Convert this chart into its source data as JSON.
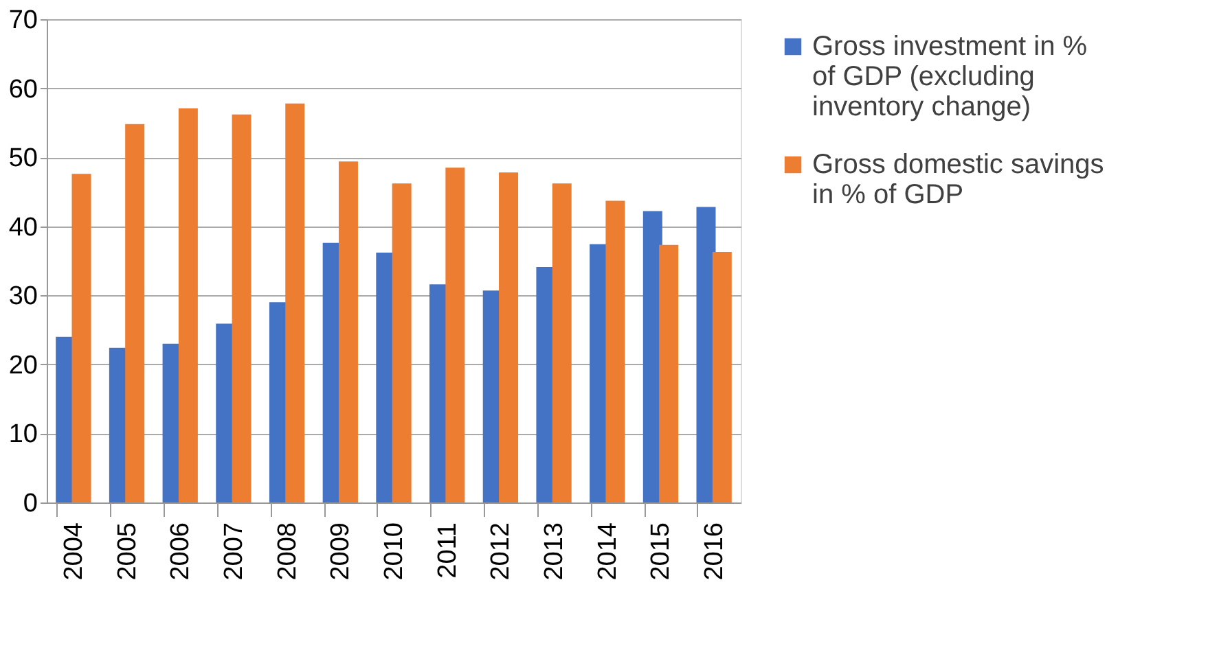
{
  "chart_data": {
    "type": "bar",
    "categories": [
      "2004",
      "2005",
      "2006",
      "2007",
      "2008",
      "2009",
      "2010",
      "2011",
      "2012",
      "2013",
      "2014",
      "2015",
      "2016"
    ],
    "series": [
      {
        "name": "Gross investment in % of GDP (excluding inventory change)",
        "color": "#4472c4",
        "values": [
          24.0,
          22.4,
          23.0,
          25.9,
          29.0,
          37.6,
          36.2,
          31.6,
          30.7,
          34.1,
          37.4,
          42.2,
          42.8
        ]
      },
      {
        "name": "Gross domestic savings in % of GDP",
        "color": "#ed7d31",
        "values": [
          47.6,
          54.8,
          57.1,
          56.2,
          57.8,
          49.4,
          46.2,
          48.5,
          47.8,
          46.2,
          43.7,
          37.3,
          36.3
        ]
      }
    ],
    "ylim": [
      0,
      70
    ],
    "yticks": [
      0,
      10,
      20,
      30,
      40,
      50,
      60,
      70
    ],
    "grid": "y",
    "legend": "right"
  }
}
